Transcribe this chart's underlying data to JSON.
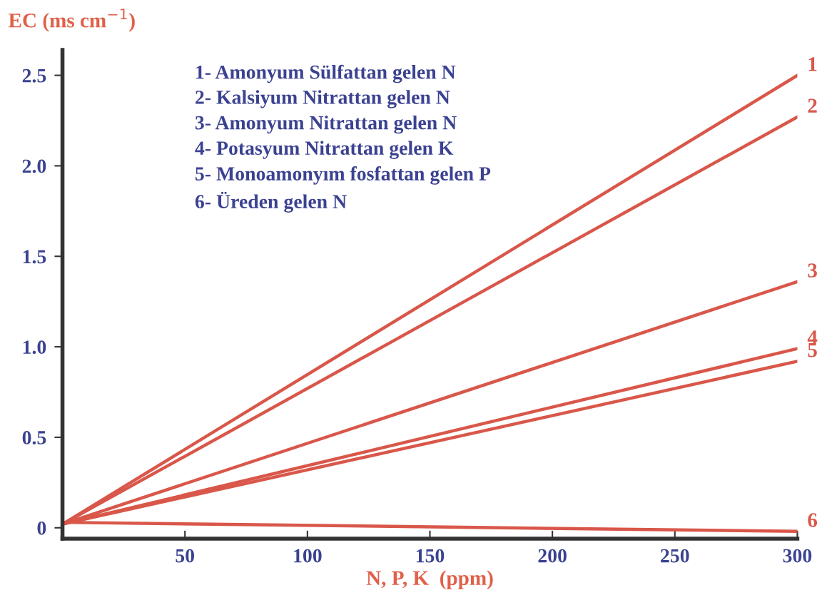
{
  "chart_data": {
    "type": "line",
    "xlabel": "N, P, K  (ppm)",
    "ylabel": "EC (ms cm$^{−1}$)",
    "x": [
      0,
      300
    ],
    "series": [
      {
        "name": "1",
        "color": "#d9574a",
        "values": [
          0.02,
          2.5
        ]
      },
      {
        "name": "2",
        "color": "#d9574a",
        "values": [
          0.02,
          2.27
        ]
      },
      {
        "name": "3",
        "color": "#d9574a",
        "values": [
          0.02,
          1.36
        ]
      },
      {
        "name": "4",
        "color": "#d9574a",
        "values": [
          0.02,
          0.99
        ]
      },
      {
        "name": "5",
        "color": "#d9574a",
        "values": [
          0.02,
          0.92
        ]
      },
      {
        "name": "6",
        "color": "#d9574a",
        "values": [
          0.03,
          -0.02
        ]
      }
    ],
    "annotations": [
      "1- Amonyum Sülfattan gelen N",
      "2- Kalsiyum Nitrattan gelen N",
      "3- Amonyum Nitrattan gelen N",
      "4- Potasyum Nitrattan gelen K",
      "5- Monoamonyım fosfattan gelen P",
      "6- Üreden gelen N"
    ],
    "xlim": [
      0,
      300
    ],
    "ylim": [
      -0.06,
      2.64
    ],
    "xticks": [
      50,
      100,
      150,
      200,
      250,
      300
    ],
    "yticks": [
      {
        "value": 0,
        "label": "0"
      },
      0.5,
      {
        "value": 1,
        "label": "1.0"
      },
      1.5,
      {
        "value": 2,
        "label": "2.0"
      },
      2.5
    ],
    "grid": false,
    "marker": "none",
    "line_style": "solid"
  }
}
